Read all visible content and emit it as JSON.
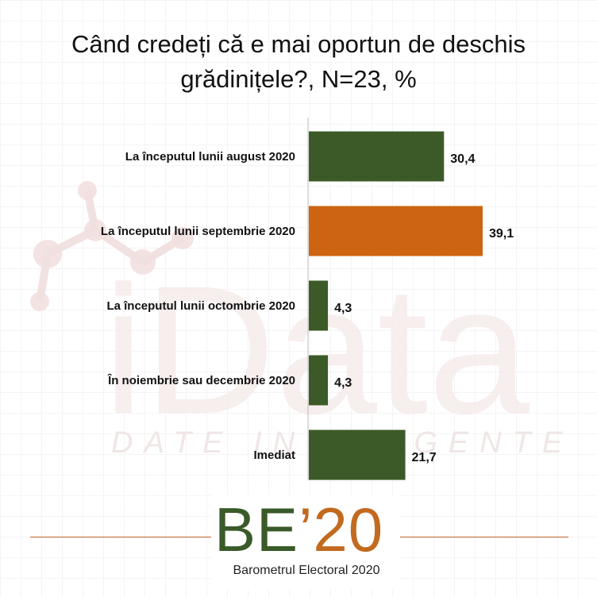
{
  "title": {
    "line1": "Când credeți că e mai oportun de deschis",
    "line2": "grădinițele?, N=23, %"
  },
  "watermark": {
    "brand": "iData",
    "tagline": "DATE INTELIGENTE"
  },
  "logo": {
    "mark_be": "BE",
    "mark_year": "’20",
    "subtitle": "Barometrul Electoral 2020"
  },
  "colors": {
    "green": "#3b5a27",
    "orange": "#cc6411",
    "axis": "#bbbbbb",
    "text": "#111111"
  },
  "chart_data": {
    "type": "bar",
    "orientation": "horizontal",
    "categories": [
      "La începutul lunii august 2020",
      "La începutul lunii septembrie 2020",
      "La începutul lunii octombrie 2020",
      "În noiembrie sau decembrie 2020",
      "Imediat"
    ],
    "values": [
      30.4,
      39.1,
      4.3,
      4.3,
      21.7
    ],
    "value_labels": [
      "30,4",
      "39,1",
      "4,3",
      "4,3",
      "21,7"
    ],
    "highlight_index": 1,
    "xlim": [
      0,
      45
    ],
    "grid": false,
    "legend": "none"
  }
}
